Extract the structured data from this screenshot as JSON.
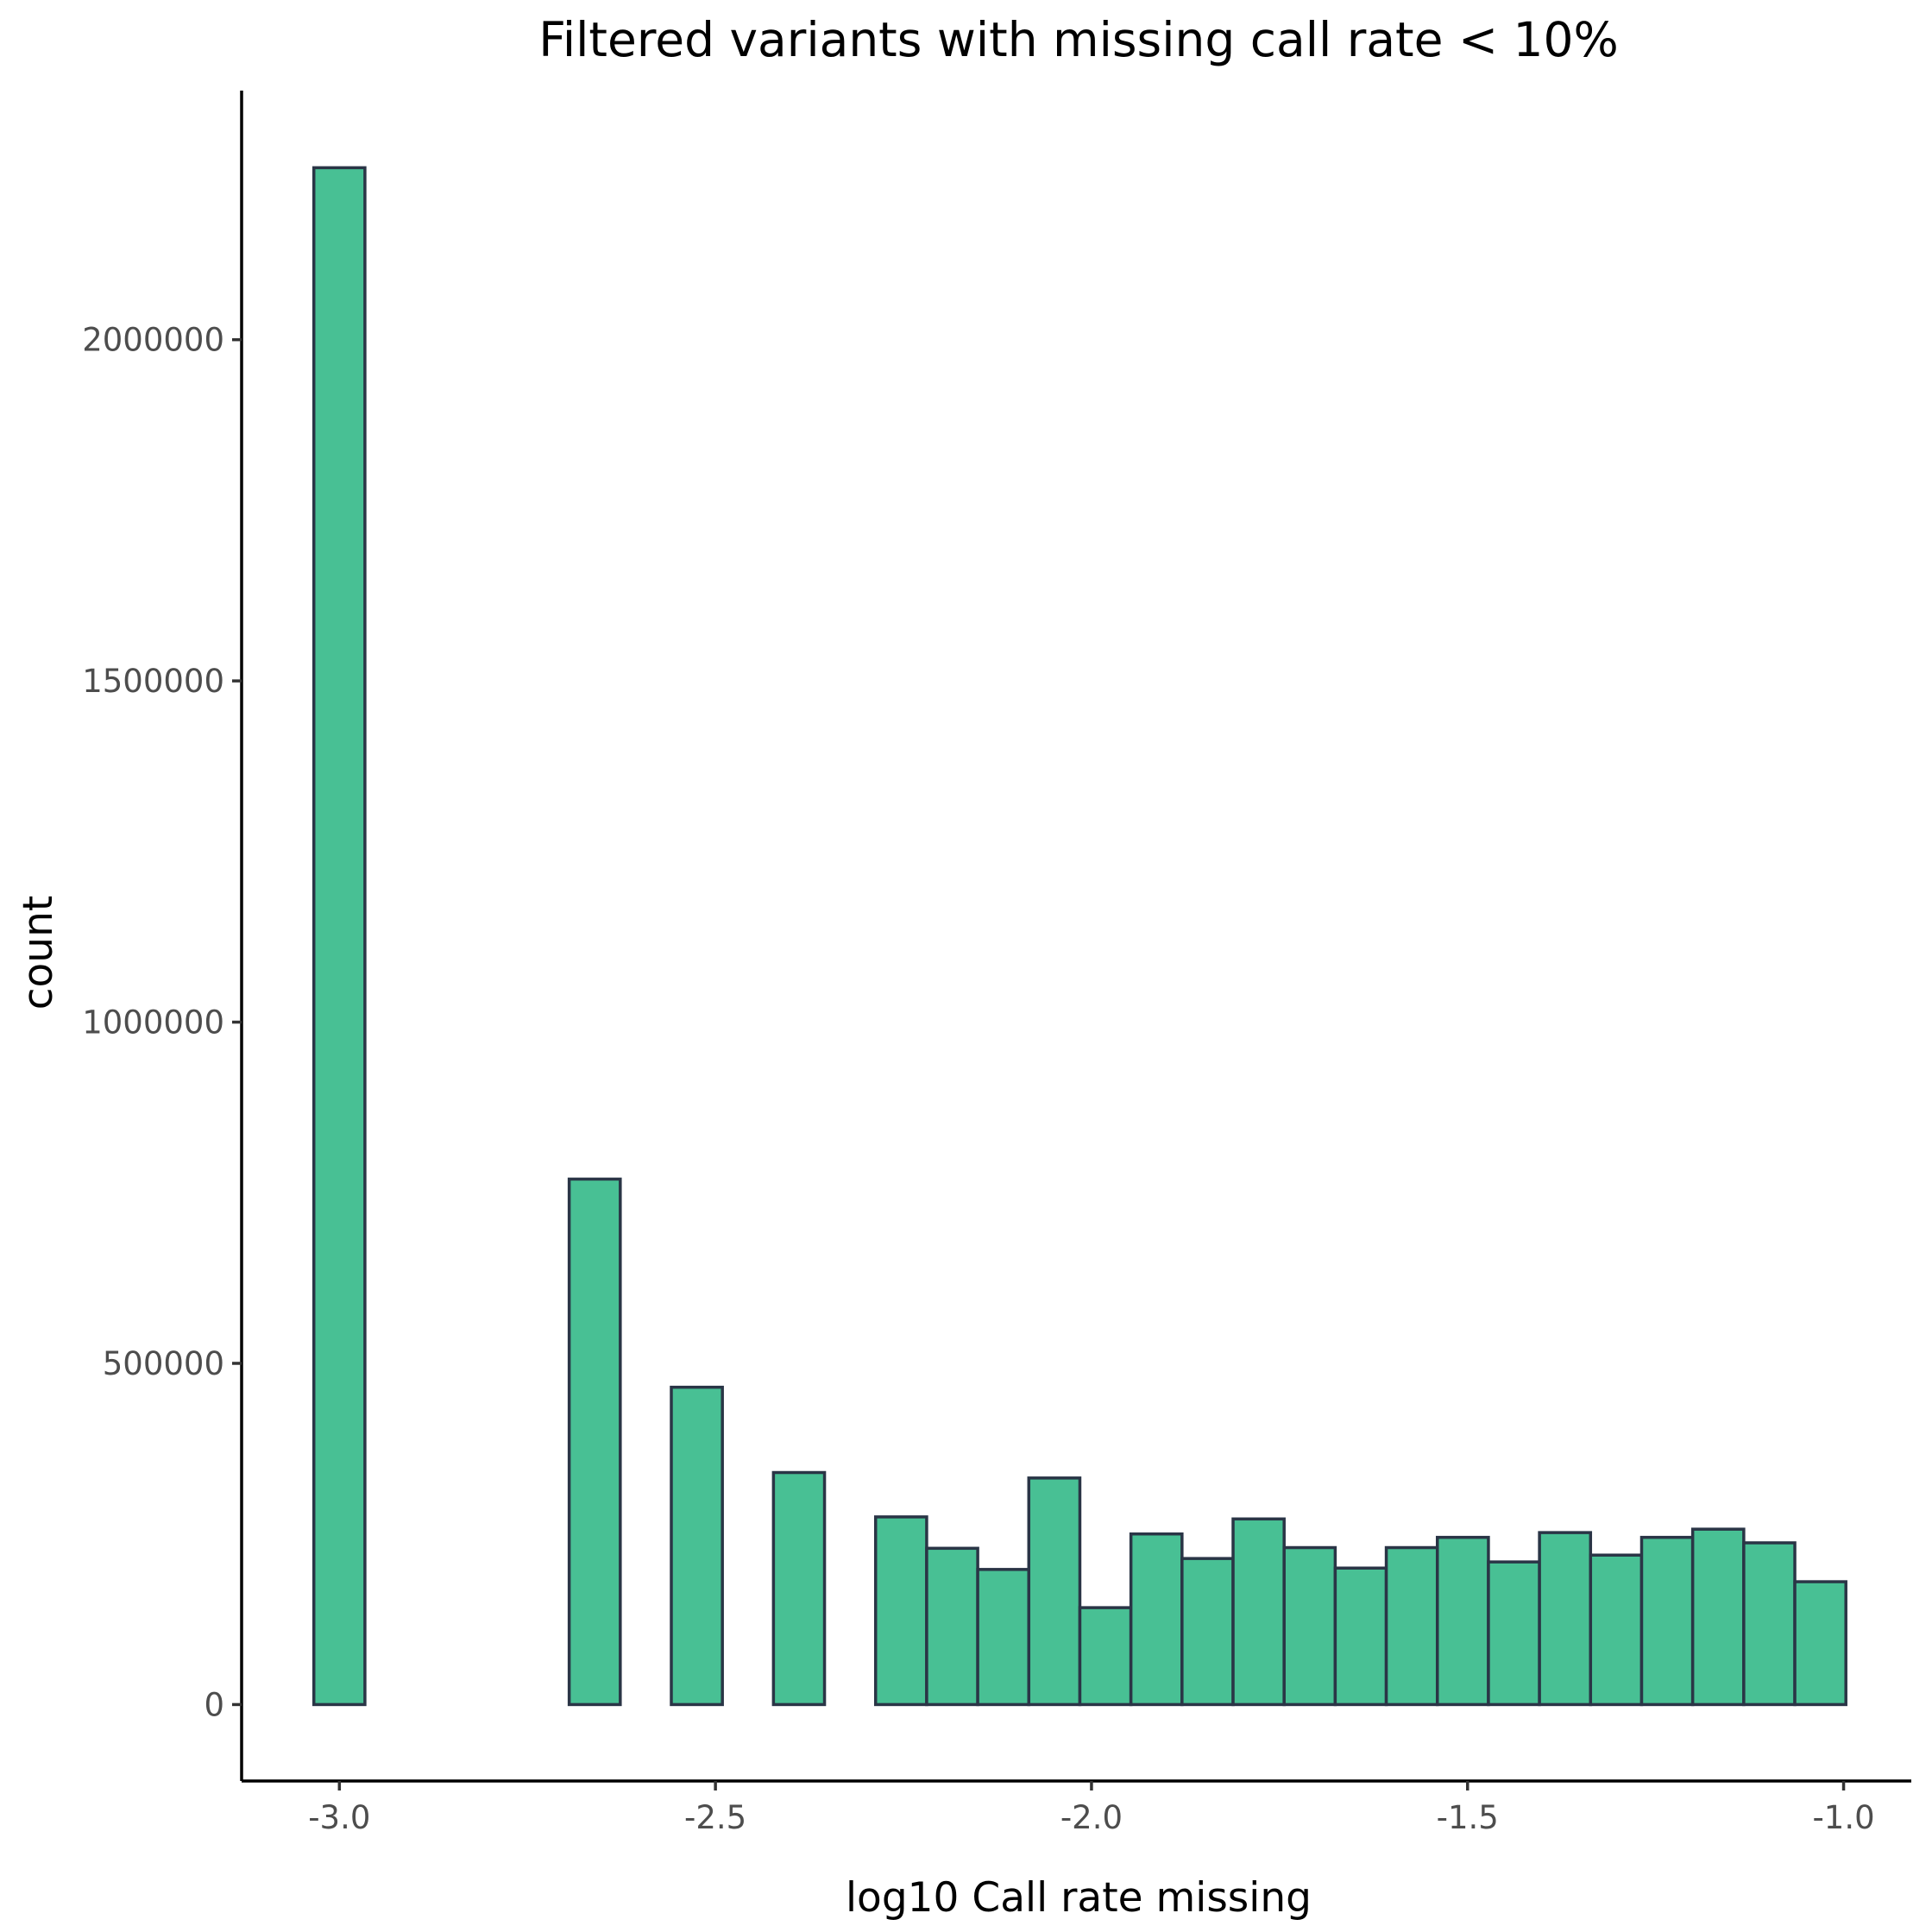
{
  "chart_data": {
    "type": "bar",
    "subtype": "histogram",
    "title": "Filtered variants with missing call rate < 10%",
    "xlabel": "log10 Call rate missing",
    "ylabel": "count",
    "x_ticks": [
      -3.0,
      -2.5,
      -2.0,
      -1.5,
      -1.0
    ],
    "x_tick_labels": [
      "-3.0",
      "-2.5",
      "-2.0",
      "-1.5",
      "-1.0"
    ],
    "y_ticks": [
      0,
      500000,
      1000000,
      1500000,
      2000000
    ],
    "y_tick_labels": [
      "0",
      "500000",
      "1000000",
      "1500000",
      "2000000"
    ],
    "xlim": [
      -3.13,
      -0.91
    ],
    "ylim": [
      -112000,
      2365000
    ],
    "bin_width": 0.0679,
    "bin_centers": [
      -3.0,
      -2.9321,
      -2.8642,
      -2.7963,
      -2.7284,
      -2.6605,
      -2.5926,
      -2.5247,
      -2.4568,
      -2.3889,
      -2.321,
      -2.2531,
      -2.1852,
      -2.1173,
      -2.0494,
      -1.9815,
      -1.9136,
      -1.8457,
      -1.7778,
      -1.7099,
      -1.642,
      -1.5741,
      -1.5062,
      -1.4383,
      -1.3704,
      -1.3025,
      -1.2346,
      -1.1667,
      -1.0988,
      -1.0309
    ],
    "values": [
      2252000,
      0,
      0,
      0,
      0,
      770000,
      0,
      465000,
      0,
      340000,
      0,
      275000,
      229000,
      198000,
      332000,
      142000,
      250000,
      214000,
      272000,
      230000,
      200000,
      230000,
      245000,
      209000,
      252000,
      219000,
      245000,
      257000,
      237000,
      180000
    ],
    "fill_color": "#48c094",
    "edge_color": "#2a3546",
    "grid": false
  }
}
